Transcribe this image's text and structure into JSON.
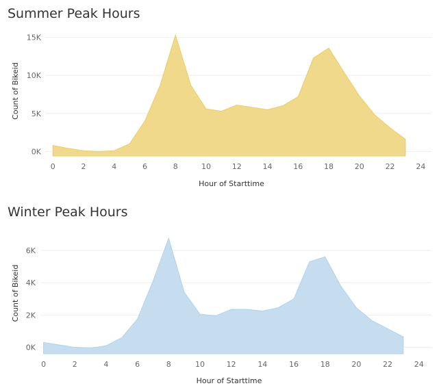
{
  "colors": {
    "summer_fill": "#f0d98a",
    "summer_line": "#e8cd6e",
    "winter_fill": "#c5ddef",
    "winter_line": "#b3d2ea"
  },
  "chart_data": [
    {
      "type": "area",
      "title": "Summer Peak Hours",
      "xlabel": "Hour of Starttime",
      "ylabel": "Count of Bikeid",
      "x": [
        0,
        1,
        2,
        3,
        4,
        5,
        6,
        7,
        8,
        9,
        10,
        11,
        12,
        13,
        14,
        15,
        16,
        17,
        18,
        19,
        20,
        21,
        22,
        23
      ],
      "series": [
        {
          "values": [
            800,
            400,
            100,
            0,
            100,
            1000,
            4000,
            8700,
            15300,
            8700,
            5600,
            5300,
            6100,
            5800,
            5500,
            6000,
            7200,
            12300,
            13600,
            10400,
            7300,
            4800,
            3100,
            1600
          ]
        }
      ],
      "xlim": [
        -0.5,
        24.7
      ],
      "ylim": [
        -600,
        16500
      ],
      "xticks": [
        0,
        2,
        4,
        6,
        8,
        10,
        12,
        14,
        16,
        18,
        20,
        22,
        24
      ],
      "yticks": [
        0,
        5000,
        10000,
        15000
      ],
      "ytick_labels": [
        "0K",
        "5K",
        "10K",
        "15K"
      ],
      "grid": true
    },
    {
      "type": "area",
      "title": "Winter Peak Hours",
      "xlabel": "Hour of Starttime",
      "ylabel": "Count of Bikeid",
      "x": [
        0,
        1,
        2,
        3,
        4,
        5,
        6,
        7,
        8,
        9,
        10,
        11,
        12,
        13,
        14,
        15,
        16,
        17,
        18,
        19,
        20,
        21,
        22,
        23
      ],
      "series": [
        {
          "values": [
            300,
            150,
            0,
            -50,
            100,
            600,
            1750,
            4100,
            6750,
            3400,
            2050,
            1950,
            2350,
            2350,
            2250,
            2450,
            3000,
            5300,
            5600,
            3800,
            2450,
            1650,
            1150,
            650
          ]
        }
      ],
      "xlim": [
        -0.2,
        24.8
      ],
      "ylim": [
        -400,
        7100
      ],
      "xticks": [
        0,
        2,
        4,
        6,
        8,
        10,
        12,
        14,
        16,
        18,
        20,
        22,
        24
      ],
      "yticks": [
        0,
        2000,
        4000,
        6000
      ],
      "ytick_labels": [
        "0K",
        "2K",
        "4K",
        "6K"
      ],
      "grid": true
    }
  ]
}
